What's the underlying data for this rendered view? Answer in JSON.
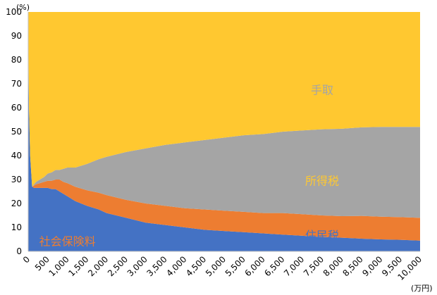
{
  "chart_data": {
    "type": "area",
    "stacked": true,
    "y_unit": "(%)",
    "x_unit": "(万円)",
    "ylim": [
      0,
      100
    ],
    "xlim": [
      0,
      10000
    ],
    "yticks": [
      "0",
      "10",
      "20",
      "30",
      "40",
      "50",
      "60",
      "70",
      "80",
      "90",
      "100"
    ],
    "xticks": [
      "0",
      "500",
      "1,000",
      "1,500",
      "2,000",
      "2,500",
      "3,000",
      "3,500",
      "4,000",
      "4,500",
      "5,000",
      "5,500",
      "6,000",
      "6,500",
      "7,000",
      "7,500",
      "8,000",
      "8,500",
      "9,000",
      "9,500",
      "10,000"
    ],
    "grid": false,
    "legend": "none",
    "x": [
      0,
      20,
      50,
      100,
      150,
      200,
      300,
      400,
      500,
      600,
      700,
      800,
      900,
      1000,
      1200,
      1500,
      1800,
      2000,
      2500,
      3000,
      3500,
      4000,
      4500,
      5000,
      5500,
      6000,
      6500,
      7000,
      7500,
      8000,
      8500,
      9000,
      9500,
      10000
    ],
    "series": [
      {
        "name": "社会保険料",
        "color": "#4472C4",
        "values": [
          100,
          60,
          40,
          27,
          26.5,
          26.5,
          26.5,
          26.5,
          26.5,
          26,
          26,
          25,
          24,
          23,
          21,
          19,
          17.5,
          16,
          14,
          12,
          11,
          10,
          9,
          8.5,
          8,
          7.5,
          7,
          6.5,
          6,
          5.7,
          5.3,
          5,
          4.8,
          4.5
        ]
      },
      {
        "name": "住民税",
        "color": "#ED7D31",
        "values": [
          0,
          0,
          0,
          0,
          1,
          1.5,
          2,
          2.5,
          3,
          3.5,
          4,
          5,
          5,
          5.5,
          6,
          6.5,
          7,
          7.5,
          7.5,
          8,
          8,
          8,
          8.5,
          8.5,
          8.5,
          8.5,
          9,
          9,
          9,
          9,
          9.5,
          9.5,
          9.5,
          9.5
        ]
      },
      {
        "name": "所得税",
        "color": "#A5A5A5",
        "values": [
          0,
          0,
          0,
          0,
          0.5,
          1,
          1.5,
          2,
          3,
          3.5,
          4,
          4,
          5.5,
          6.5,
          8,
          11,
          14,
          16,
          20,
          23,
          25.5,
          27.5,
          29,
          30.5,
          32,
          33,
          34,
          35,
          36,
          36.5,
          37,
          37.5,
          37.7,
          38
        ]
      },
      {
        "name": "手取",
        "color": "#FFC830",
        "values": [
          0,
          40,
          60,
          73,
          72,
          71,
          70,
          69,
          67.5,
          67,
          66,
          66,
          65.5,
          65,
          65,
          63.5,
          61.5,
          60.5,
          58.5,
          57,
          55.5,
          54.5,
          53.5,
          52.5,
          51.5,
          51,
          50,
          49.5,
          49,
          48.8,
          48.2,
          48,
          48,
          48
        ]
      }
    ],
    "labels": [
      {
        "text": "手取",
        "x": 7500,
        "y": 67.5,
        "color": "#A5A5A5"
      },
      {
        "text": "所得税",
        "x": 7500,
        "y": 29.5,
        "color": "#FFC830"
      },
      {
        "text": "住民税",
        "x": 7500,
        "y": 6.7,
        "color": "#4472C4"
      },
      {
        "text": "社会保険料",
        "x": 1000,
        "y": 4.3,
        "color": "#ED7D31"
      }
    ]
  }
}
